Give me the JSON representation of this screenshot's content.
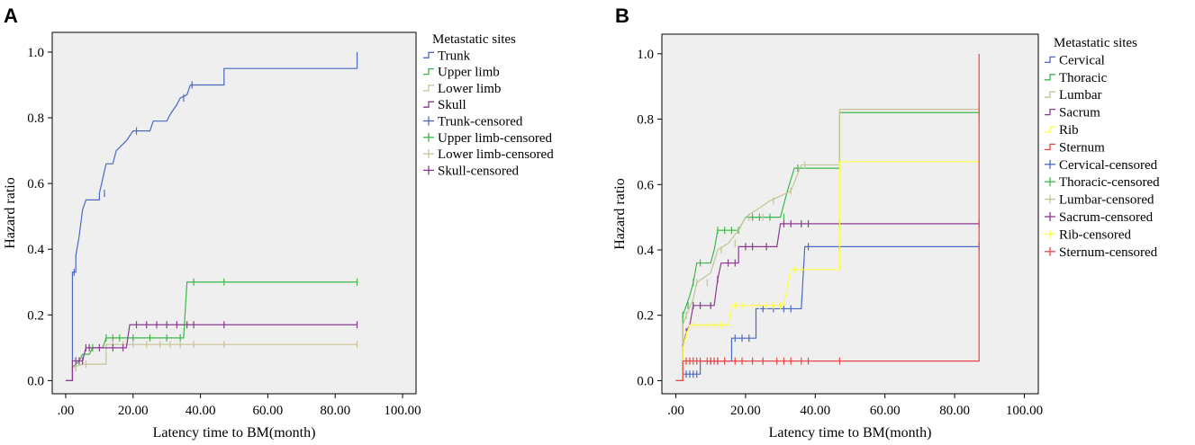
{
  "panels": {
    "a": {
      "letter": "A"
    },
    "b": {
      "letter": "B"
    }
  },
  "chart_data": [
    {
      "type": "line",
      "step": true,
      "panel": "A",
      "xlabel": "Latency time to BM(month)",
      "ylabel": "Hazard ratio",
      "xlim": [
        -4,
        104
      ],
      "ylim": [
        -0.04,
        1.06
      ],
      "x_ticks": [
        0,
        20,
        40,
        60,
        80,
        100
      ],
      "x_tick_labels": [
        ".00",
        "20.00",
        "40.00",
        "60.00",
        "80.00",
        "100.00"
      ],
      "y_ticks": [
        0,
        0.2,
        0.4,
        0.6,
        0.8,
        1.0
      ],
      "y_tick_labels": [
        "0.0",
        "0.2",
        "0.4",
        "0.6",
        "0.8",
        "1.0"
      ],
      "background": "#efefef",
      "legend_title": "Metastatic sites",
      "legend_position": "right",
      "legend_entries": [
        "Trunk",
        "Upper limb",
        "Lower limb",
        "Skull",
        "Trunk-censored",
        "Upper limb-censored",
        "Lower limb-censored",
        "Skull-censored"
      ],
      "series": [
        {
          "name": "Trunk",
          "color": "#4b69c4",
          "points": [
            [
              0,
              0
            ],
            [
              2,
              0
            ],
            [
              2,
              0.33
            ],
            [
              3,
              0.33
            ],
            [
              3,
              0.38
            ],
            [
              4,
              0.44
            ],
            [
              5,
              0.52
            ],
            [
              6,
              0.55
            ],
            [
              10,
              0.55
            ],
            [
              10,
              0.57
            ],
            [
              12,
              0.66
            ],
            [
              14,
              0.66
            ],
            [
              15,
              0.7
            ],
            [
              16,
              0.71
            ],
            [
              18,
              0.73
            ],
            [
              20,
              0.76
            ],
            [
              25,
              0.76
            ],
            [
              26,
              0.79
            ],
            [
              30,
              0.79
            ],
            [
              31,
              0.81
            ],
            [
              33,
              0.84
            ],
            [
              34,
              0.86
            ],
            [
              36,
              0.87
            ],
            [
              37,
              0.9
            ],
            [
              47,
              0.9
            ],
            [
              47,
              0.95
            ],
            [
              86.5,
              0.95
            ],
            [
              86.5,
              1.0
            ]
          ],
          "censored": [
            2.5,
            11.5,
            21,
            35,
            37.5
          ]
        },
        {
          "name": "Upper limb",
          "color": "#3cb84a",
          "points": [
            [
              0,
              0
            ],
            [
              2,
              0
            ],
            [
              2,
              0.04
            ],
            [
              4,
              0.06
            ],
            [
              5,
              0.08
            ],
            [
              7,
              0.08
            ],
            [
              8,
              0.1
            ],
            [
              11,
              0.1
            ],
            [
              12,
              0.13
            ],
            [
              35,
              0.13
            ],
            [
              36,
              0.3
            ],
            [
              86.5,
              0.3
            ]
          ],
          "censored": [
            3,
            8,
            12,
            14,
            16,
            20,
            25,
            30,
            34,
            38,
            47,
            86.5
          ]
        },
        {
          "name": "Lower limb",
          "color": "#c8c396",
          "points": [
            [
              0,
              0
            ],
            [
              2,
              0
            ],
            [
              2,
              0.04
            ],
            [
              5,
              0.05
            ],
            [
              12,
              0.05
            ],
            [
              12,
              0.11
            ],
            [
              86.5,
              0.11
            ]
          ],
          "censored": [
            3,
            6,
            14,
            17,
            20,
            24,
            28,
            31,
            34,
            38,
            47,
            86.5
          ]
        },
        {
          "name": "Skull",
          "color": "#8b3a8f",
          "points": [
            [
              0,
              0
            ],
            [
              2,
              0
            ],
            [
              2,
              0.06
            ],
            [
              5,
              0.06
            ],
            [
              6,
              0.1
            ],
            [
              18,
              0.1
            ],
            [
              19,
              0.17
            ],
            [
              86.5,
              0.17
            ]
          ],
          "censored": [
            3,
            4,
            5,
            6,
            7,
            10,
            14,
            17,
            21,
            24,
            27,
            30,
            33,
            36,
            38,
            47,
            86.5
          ]
        }
      ]
    },
    {
      "type": "line",
      "step": true,
      "panel": "B",
      "xlabel": "Latency time to BM(month)",
      "ylabel": "Hazard ratio",
      "xlim": [
        -4,
        104
      ],
      "ylim": [
        -0.04,
        1.06
      ],
      "x_ticks": [
        0,
        20,
        40,
        60,
        80,
        100
      ],
      "x_tick_labels": [
        ".00",
        "20.00",
        "40.00",
        "60.00",
        "80.00",
        "100.00"
      ],
      "y_ticks": [
        0,
        0.2,
        0.4,
        0.6,
        0.8,
        1.0
      ],
      "y_tick_labels": [
        "0.0",
        "0.2",
        "0.4",
        "0.6",
        "0.8",
        "1.0"
      ],
      "background": "#efefef",
      "legend_title": "Metastatic sites",
      "legend_position": "right",
      "legend_entries": [
        "Cervical",
        "Thoracic",
        "Lumbar",
        "Sacrum",
        "Rib",
        "Sternum",
        "Cervical-censored",
        "Thoracic-censored",
        "Lumbar-censored",
        "Sacrum-censored",
        "Rib-censored",
        "Sternum-censored"
      ],
      "series": [
        {
          "name": "Cervical",
          "color": "#4b69c4",
          "points": [
            [
              0,
              0
            ],
            [
              2,
              0
            ],
            [
              2,
              0.02
            ],
            [
              7,
              0.02
            ],
            [
              7,
              0.06
            ],
            [
              16,
              0.06
            ],
            [
              16,
              0.13
            ],
            [
              23,
              0.13
            ],
            [
              23,
              0.22
            ],
            [
              36,
              0.22
            ],
            [
              37,
              0.41
            ],
            [
              87,
              0.41
            ]
          ],
          "censored": [
            3,
            4,
            5,
            6,
            10,
            12,
            17,
            19,
            21,
            25,
            28,
            31,
            33,
            38,
            47,
            87
          ]
        },
        {
          "name": "Thoracic",
          "color": "#3cb84a",
          "points": [
            [
              0,
              0
            ],
            [
              2,
              0
            ],
            [
              2,
              0.2
            ],
            [
              3,
              0.23
            ],
            [
              4,
              0.26
            ],
            [
              5,
              0.3
            ],
            [
              6,
              0.36
            ],
            [
              10,
              0.36
            ],
            [
              11,
              0.4
            ],
            [
              12,
              0.46
            ],
            [
              18,
              0.46
            ],
            [
              20,
              0.5
            ],
            [
              30,
              0.5
            ],
            [
              32,
              0.58
            ],
            [
              34,
              0.65
            ],
            [
              47,
              0.65
            ],
            [
              47,
              0.82
            ],
            [
              87,
              0.82
            ]
          ],
          "censored": [
            2,
            3.5,
            5,
            7,
            12,
            14,
            16,
            18,
            22,
            24,
            27,
            31,
            35,
            87
          ]
        },
        {
          "name": "Lumbar",
          "color": "#c8c396",
          "points": [
            [
              0,
              0
            ],
            [
              2,
              0
            ],
            [
              2,
              0.17
            ],
            [
              3,
              0.2
            ],
            [
              5,
              0.25
            ],
            [
              6,
              0.3
            ],
            [
              10,
              0.33
            ],
            [
              12,
              0.4
            ],
            [
              15,
              0.42
            ],
            [
              18,
              0.46
            ],
            [
              20,
              0.5
            ],
            [
              27,
              0.55
            ],
            [
              33,
              0.58
            ],
            [
              36,
              0.66
            ],
            [
              47,
              0.66
            ],
            [
              47,
              0.83
            ],
            [
              87,
              0.83
            ]
          ],
          "censored": [
            3,
            6,
            9,
            13,
            17,
            21,
            25,
            28,
            33,
            37,
            87
          ]
        },
        {
          "name": "Sacrum",
          "color": "#8b3a8f",
          "points": [
            [
              0,
              0
            ],
            [
              2,
              0
            ],
            [
              2,
              0.1
            ],
            [
              3,
              0.15
            ],
            [
              4,
              0.17
            ],
            [
              5,
              0.23
            ],
            [
              11,
              0.23
            ],
            [
              12,
              0.31
            ],
            [
              13,
              0.36
            ],
            [
              18,
              0.36
            ],
            [
              18,
              0.41
            ],
            [
              29,
              0.41
            ],
            [
              30,
              0.48
            ],
            [
              87,
              0.48
            ]
          ],
          "censored": [
            2,
            3,
            5,
            7,
            10,
            12,
            15,
            17,
            20,
            22,
            26,
            31,
            33,
            36,
            38,
            47,
            87
          ]
        },
        {
          "name": "Rib",
          "color": "#ffff40",
          "points": [
            [
              0,
              0
            ],
            [
              2,
              0
            ],
            [
              2,
              0.1
            ],
            [
              3,
              0.14
            ],
            [
              4,
              0.17
            ],
            [
              15,
              0.17
            ],
            [
              16,
              0.23
            ],
            [
              31,
              0.23
            ],
            [
              32,
              0.29
            ],
            [
              33,
              0.34
            ],
            [
              47,
              0.34
            ],
            [
              47,
              0.67
            ],
            [
              87,
              0.67
            ]
          ],
          "censored": [
            3,
            5,
            7,
            9,
            11,
            13,
            17,
            19,
            22,
            24,
            26,
            28,
            30,
            34,
            36,
            87
          ]
        },
        {
          "name": "Sternum",
          "color": "#ea4545",
          "points": [
            [
              0,
              0
            ],
            [
              2,
              0
            ],
            [
              2,
              0.06
            ],
            [
              87,
              0.06
            ],
            [
              87,
              1.0
            ]
          ],
          "censored": [
            3,
            4,
            5,
            6,
            7,
            9,
            10,
            11,
            12,
            14,
            17,
            19,
            22,
            25,
            29,
            31,
            33,
            36,
            38,
            47
          ]
        }
      ]
    }
  ]
}
